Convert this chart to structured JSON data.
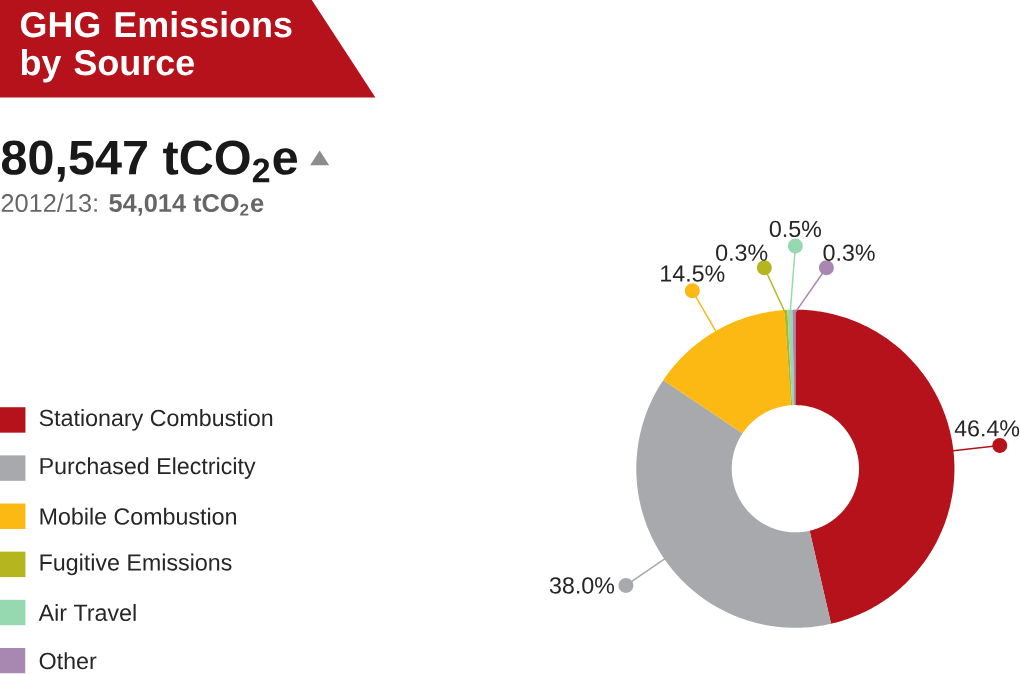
{
  "chart_data": {
    "type": "donut",
    "title": "GHG Emissions by Source",
    "annotations": [
      "80,547 tCO$_{2}$e",
      "2012/13: **54,014 tCO$_{2}$e**"
    ],
    "categories": [
      "Stationary Combustion",
      "Purchased Electricity",
      "Mobile Combustion",
      "Fugitive Emissions",
      "Air Travel",
      "Other"
    ],
    "values": [
      46.4,
      38.0,
      14.5,
      0.3,
      0.5,
      0.3
    ],
    "colors": [
      "#b5121b",
      "#a7a9ac",
      "#fdb913",
      "#b5b520",
      "#96d9b0",
      "#a887b0"
    ],
    "value_labels": [
      "46.4%",
      "38.0%",
      "14.5%",
      "0.3%",
      "0.5%",
      "0.3%"
    ],
    "legend": "left"
  }
}
